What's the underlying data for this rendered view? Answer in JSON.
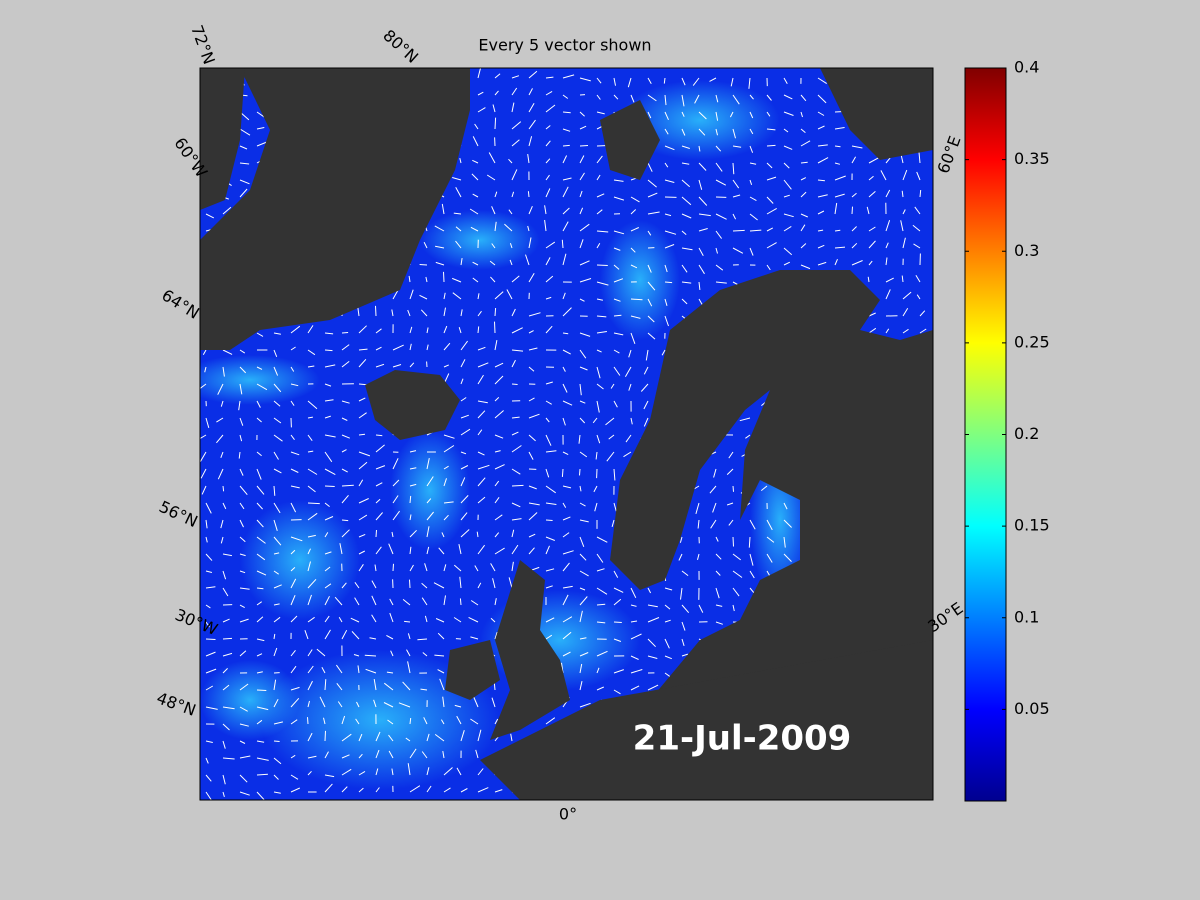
{
  "title": "Every 5 vector shown",
  "date_label": "21-Jul-2009",
  "graticule_labels": [
    "72°N",
    "80°N",
    "60°W",
    "64°N",
    "56°N",
    "30°W",
    "48°N",
    "0°",
    "60°E",
    "30°E"
  ],
  "colorbar": {
    "colormap": "jet",
    "ylim": [
      0,
      0.4
    ],
    "yticks": [
      0.05,
      0.1,
      0.15,
      0.2,
      0.25,
      0.3,
      0.35,
      0.4
    ]
  }
}
